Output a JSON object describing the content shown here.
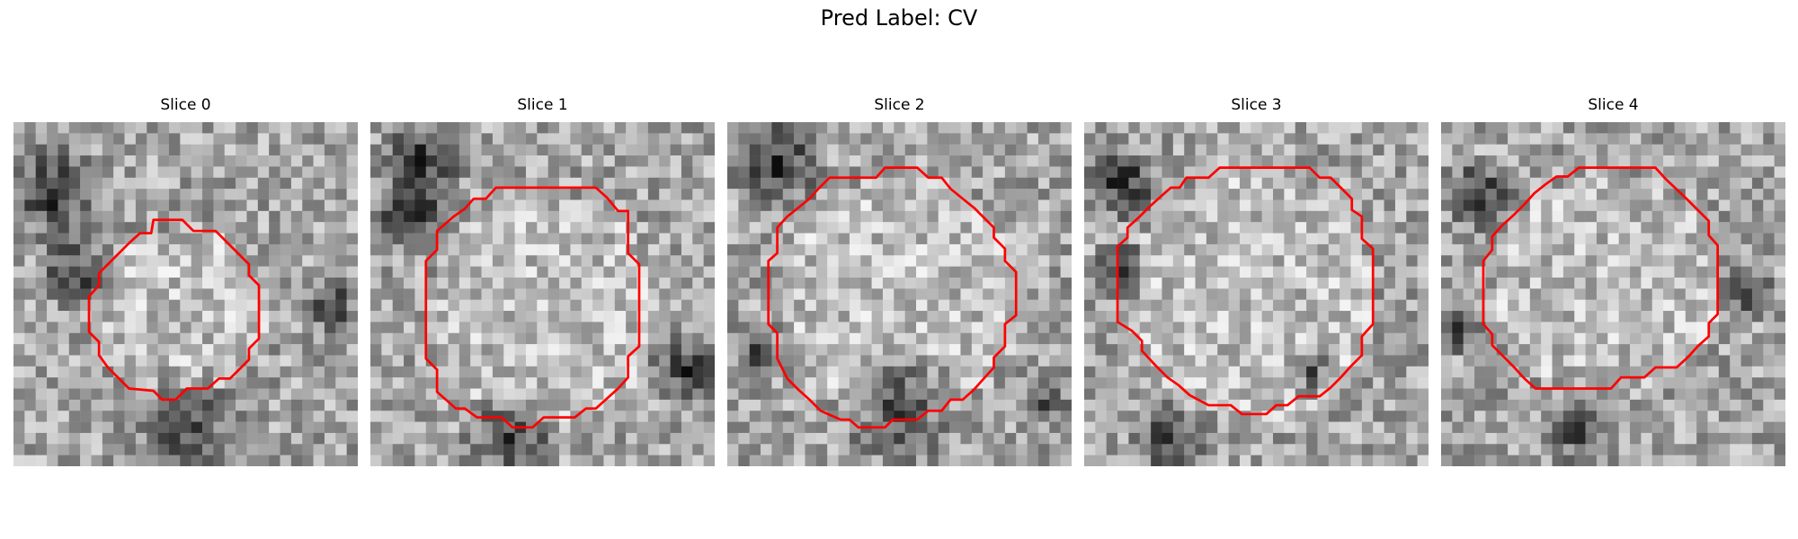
{
  "figure": {
    "title": "Pred Label: CV"
  },
  "panels": [
    {
      "title": "Slice 0",
      "contour_color": "#ff0000"
    },
    {
      "title": "Slice 1",
      "contour_color": "#ff0000"
    },
    {
      "title": "Slice 2",
      "contour_color": "#ff0000"
    },
    {
      "title": "Slice 3",
      "contour_color": "#ff0000"
    },
    {
      "title": "Slice 4",
      "contour_color": "#ff0000"
    }
  ]
}
